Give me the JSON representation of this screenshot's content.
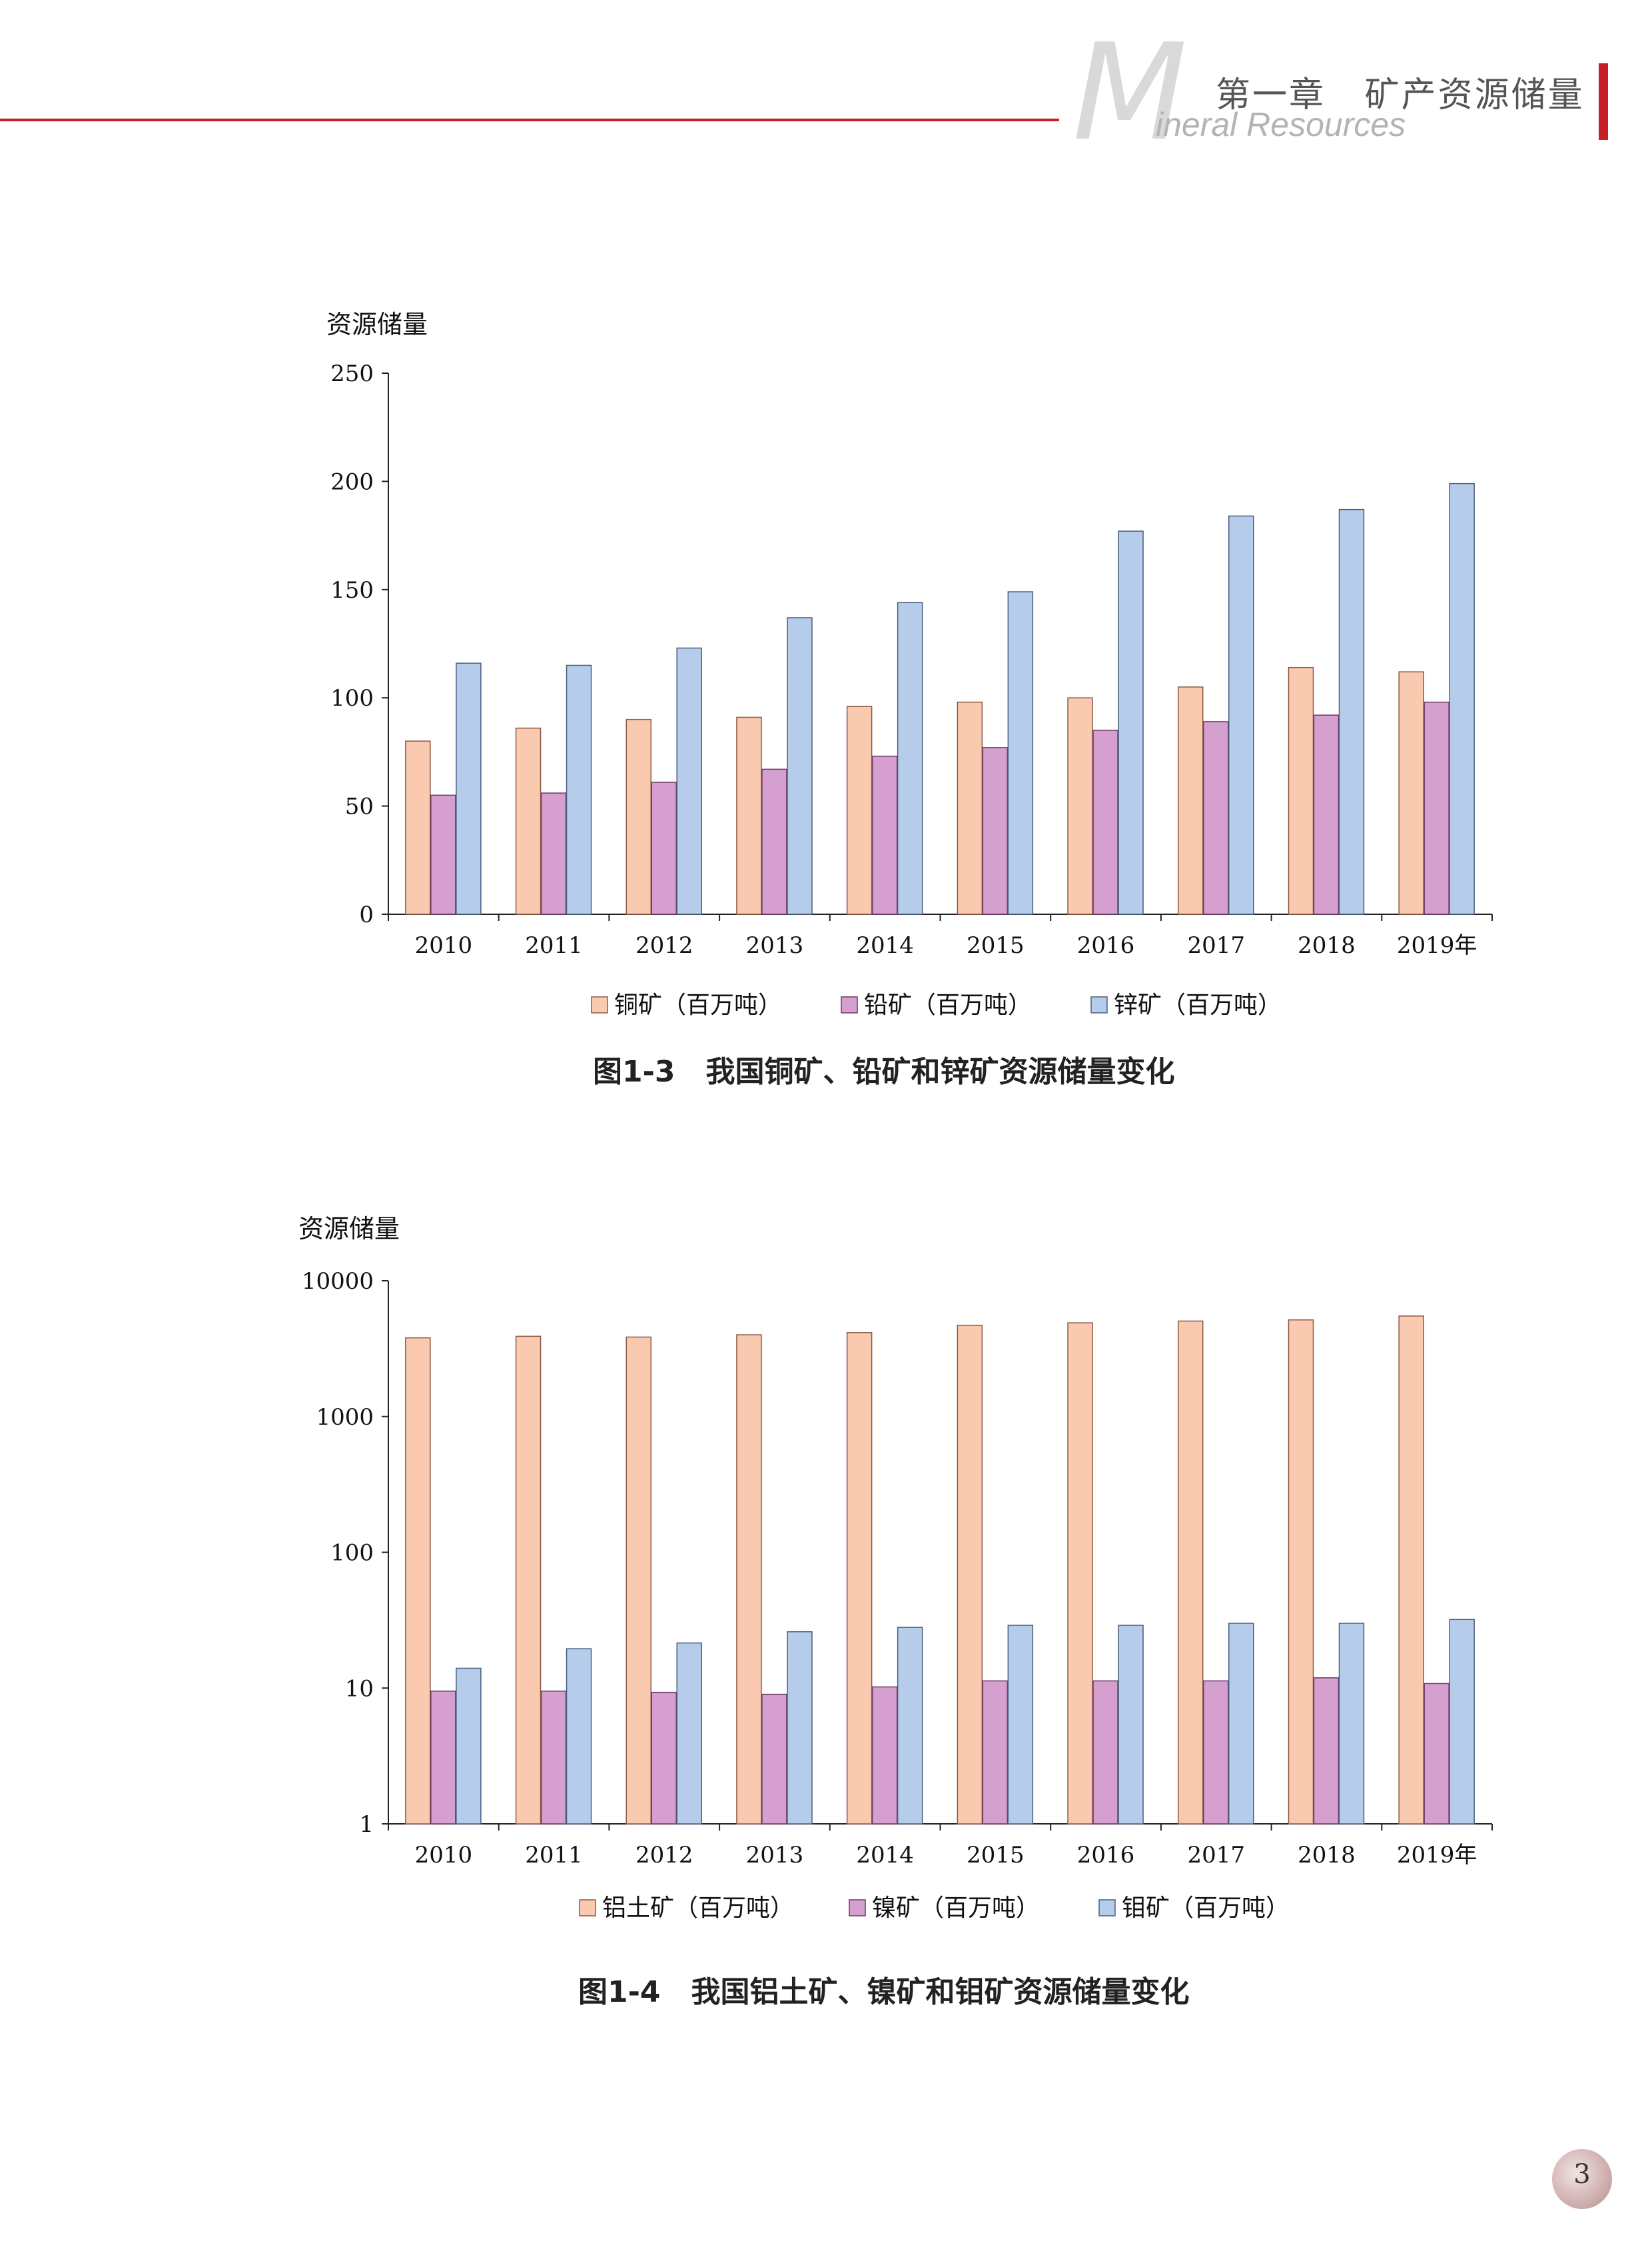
{
  "header": {
    "title": "第一章   矿产资源储量",
    "big_letter": "M",
    "subtitle": "ineral Resources"
  },
  "page_number": "3",
  "colors": {
    "accent": "#c62026",
    "series1": "#f9c9b0",
    "series2": "#d5a0cf",
    "series3": "#b5cceb"
  },
  "chart_data": [
    {
      "type": "bar",
      "caption": "图1-3   我国铜矿、铅矿和锌矿资源储量变化",
      "ylabel": "资源储量",
      "categories": [
        "2010",
        "2011",
        "2012",
        "2013",
        "2014",
        "2015",
        "2016",
        "2017",
        "2018",
        "2019年"
      ],
      "ylim": [
        0,
        250
      ],
      "yticks": [
        "0",
        "50",
        "100",
        "150",
        "200",
        "250"
      ],
      "log_scale": false,
      "legend_position": "bottom",
      "series": [
        {
          "name": "铜矿（百万吨）",
          "values": [
            80,
            86,
            90,
            91,
            96,
            98,
            100,
            105,
            114,
            112
          ]
        },
        {
          "name": "铅矿（百万吨）",
          "values": [
            55,
            56,
            61,
            67,
            73,
            77,
            85,
            89,
            92,
            98
          ]
        },
        {
          "name": "锌矿（百万吨）",
          "values": [
            116,
            115,
            123,
            137,
            144,
            149,
            177,
            184,
            187,
            199
          ]
        }
      ]
    },
    {
      "type": "bar",
      "caption": "图1-4   我国铝土矿、镍矿和钼矿资源储量变化",
      "ylabel": "资源储量",
      "categories": [
        "2010",
        "2011",
        "2012",
        "2013",
        "2014",
        "2015",
        "2016",
        "2017",
        "2018",
        "2019年"
      ],
      "ylim": [
        1,
        10000
      ],
      "yticks": [
        "1",
        "10",
        "100",
        "1000",
        "10000"
      ],
      "log_scale": true,
      "legend_position": "bottom",
      "series": [
        {
          "name": "铝土矿（百万吨）",
          "values": [
            3800,
            3900,
            3850,
            4000,
            4150,
            4700,
            4900,
            5050,
            5150,
            5500
          ]
        },
        {
          "name": "镍矿（百万吨）",
          "values": [
            9.5,
            9.5,
            9.3,
            9.0,
            10.2,
            11.3,
            11.3,
            11.3,
            11.9,
            10.8
          ]
        },
        {
          "name": "钼矿（百万吨）",
          "values": [
            14,
            19.5,
            21.5,
            26,
            28,
            29,
            29,
            30,
            30,
            32
          ]
        }
      ]
    }
  ]
}
